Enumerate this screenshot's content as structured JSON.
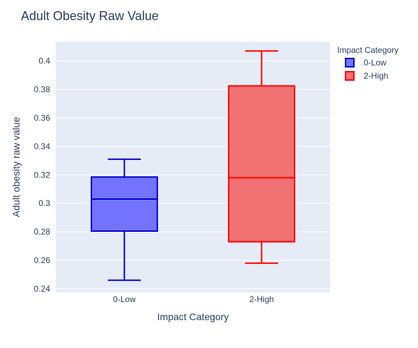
{
  "chart_data": {
    "type": "box",
    "title": "Adult Obesity Raw Value",
    "xlabel": "Impact Category",
    "ylabel": "Adult obesity raw value",
    "ylim": [
      0.2375,
      0.4135
    ],
    "yticks": [
      0.24,
      0.26,
      0.28,
      0.3,
      0.32,
      0.34,
      0.36,
      0.38,
      0.4
    ],
    "ytick_labels": [
      "0.24",
      "0.26",
      "0.28",
      "0.3",
      "0.32",
      "0.34",
      "0.36",
      "0.38",
      "0.4"
    ],
    "grid": true,
    "legend": {
      "title": "Impact Category",
      "position": "top-right"
    },
    "categories": [
      "0-Low",
      "2-High"
    ],
    "series": [
      {
        "name": "0-Low",
        "category": "0-Low",
        "min": 0.246,
        "q1": 0.2805,
        "median": 0.303,
        "q3": 0.3185,
        "max": 0.331,
        "line_color": "#0000cc",
        "fill_color": "#7373ff"
      },
      {
        "name": "2-High",
        "category": "2-High",
        "min": 0.258,
        "q1": 0.273,
        "median": 0.318,
        "q3": 0.3825,
        "max": 0.407,
        "line_color": "#ff0000",
        "fill_color": "#f07272"
      }
    ],
    "colors": {
      "plot_background": "#e5ecf6",
      "gridline": "#ffffff",
      "text": "#2a3f5f"
    }
  }
}
